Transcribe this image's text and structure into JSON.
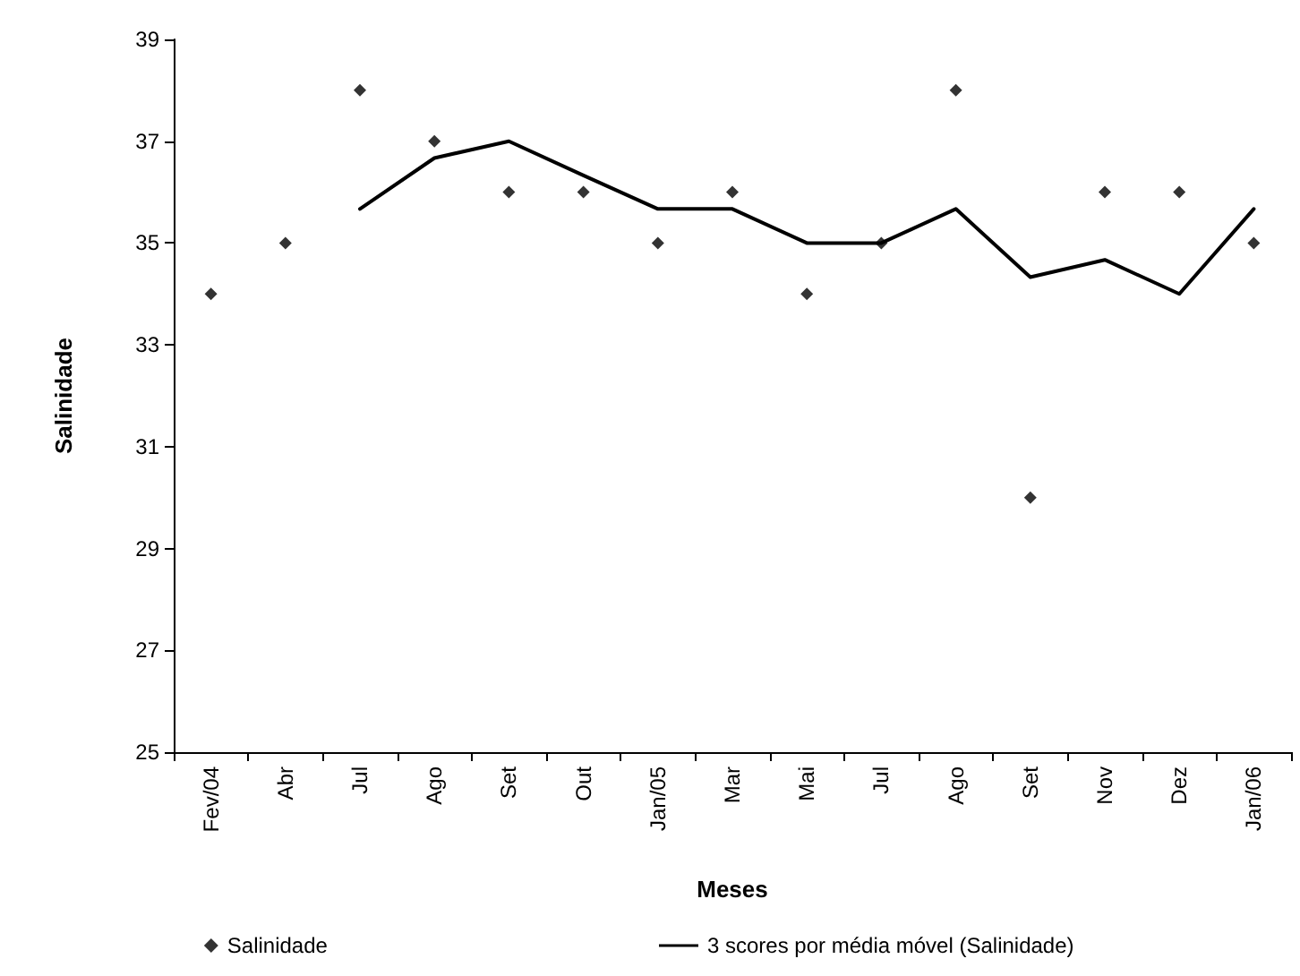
{
  "chart_data": {
    "type": "scatter",
    "xlabel": "Meses",
    "ylabel": "Salinidade",
    "categories": [
      "Fev/04",
      "Abr",
      "Jul",
      "Ago",
      "Set",
      "Out",
      "Jan/05",
      "Mar",
      "Mai",
      "Jul",
      "Ago",
      "Set",
      "Nov",
      "Dez",
      "Jan/06"
    ],
    "series": [
      {
        "name": "Salinidade",
        "color": "#000000",
        "marker": "diamond",
        "values": [
          34,
          35,
          38,
          37,
          36,
          36,
          35,
          36,
          34,
          35,
          38,
          30,
          36,
          36,
          35
        ]
      },
      {
        "name": "3 scores por média móvel (Salinidade)",
        "type": "line",
        "color": "#000000",
        "marker": "none",
        "line_style": "solid",
        "values": [
          null,
          null,
          35.67,
          36.67,
          37,
          36.33,
          35.67,
          35.67,
          35,
          35,
          35.67,
          34.33,
          34.67,
          34,
          35.67
        ]
      }
    ],
    "ylim": [
      25,
      39
    ],
    "yticks": [
      25,
      27,
      29,
      31,
      33,
      35,
      37,
      39
    ],
    "grid": false,
    "legend": "bottom"
  }
}
